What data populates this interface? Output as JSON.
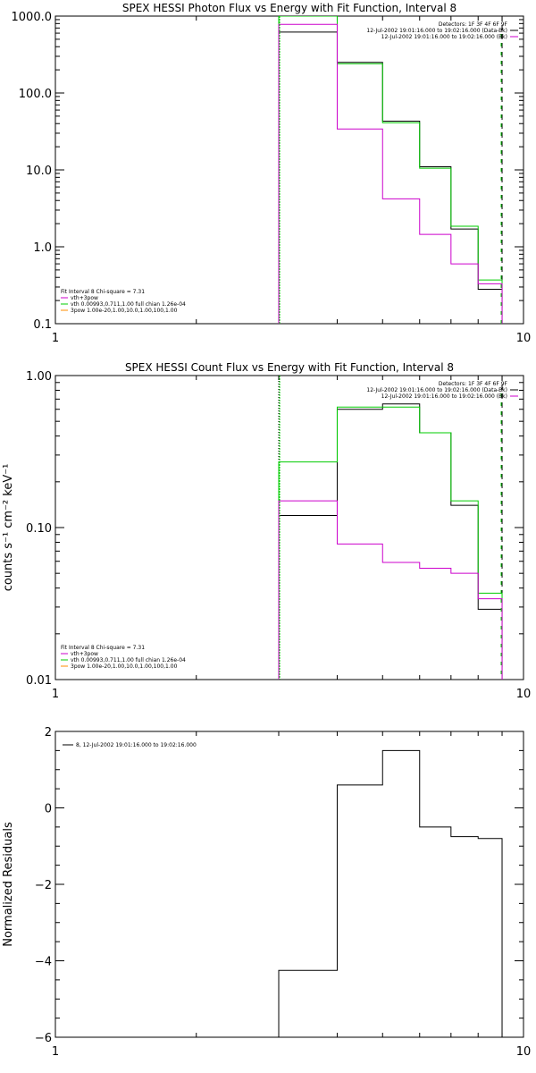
{
  "colors": {
    "data": "#000000",
    "total": "#00cc00",
    "background": "#cc00cc",
    "accent_orange": "#ff8c00",
    "purple": "#4b0082",
    "vline_low": "#00aa00"
  },
  "chart_data": [
    {
      "type": "line",
      "title": "SPEX HESSI Photon Flux vs Energy with Fit Function, Interval 8",
      "xscale": "log",
      "yscale": "log",
      "xlim": [
        1,
        10
      ],
      "ylim": [
        0.1,
        1000
      ],
      "xticks": [
        1,
        10
      ],
      "xtick_labels": [
        "1",
        "10"
      ],
      "yticks": [
        0.1,
        1,
        10,
        100,
        1000
      ],
      "ytick_labels": [
        "0.1",
        "1.0",
        "10.0",
        "100.0",
        "1000.0"
      ],
      "ylabel": "",
      "vlines": [
        {
          "x": 3.0,
          "style": "dotted"
        },
        {
          "x": 9.0,
          "style": "dashed"
        }
      ],
      "legend_top_right": [
        "Detectors: 1F 3F 4F 6F 9F",
        "12-Jul-2002 19:01:16.000 to 19:02:16.000 (Data-Bk)",
        "12-Jul-2002 19:01:16.000 to 19:02:16.000 (Bk)"
      ],
      "legend_bottom_left": [
        "Fit Interval 8    Chi-square = 7.31",
        "vth+3pow",
        "vth 0.00993,0.711,1.00  full chian 1.26e-04",
        "3pow 1.00e-20,1.00,10.0,1.00,100,1.00"
      ],
      "edges": [
        3.0,
        4.0,
        5.0,
        6.0,
        7.0,
        8.0,
        9.0
      ],
      "series": [
        {
          "name": "Data-Bk",
          "values": [
            620,
            250,
            43,
            11,
            1.7,
            0.28
          ]
        },
        {
          "name": "vth+3pow",
          "values": [
            1000,
            240,
            41,
            10.5,
            1.85,
            0.37
          ]
        },
        {
          "name": "Bk",
          "values": [
            780,
            34,
            4.2,
            1.45,
            0.6,
            0.33
          ]
        }
      ]
    },
    {
      "type": "line",
      "title": "SPEX HESSI Count Flux vs Energy with Fit Function, Interval 8",
      "xscale": "log",
      "yscale": "log",
      "xlim": [
        1,
        10
      ],
      "ylim": [
        0.01,
        1.0
      ],
      "xticks": [
        1,
        10
      ],
      "xtick_labels": [
        "1",
        "10"
      ],
      "yticks": [
        0.01,
        0.1,
        1.0
      ],
      "ytick_labels": [
        "0.01",
        "0.10",
        "1.00"
      ],
      "ylabel": "counts s⁻¹ cm⁻² keV⁻¹",
      "vlines": [
        {
          "x": 3.0,
          "style": "dotted"
        },
        {
          "x": 9.0,
          "style": "dashed"
        }
      ],
      "legend_top_right": [
        "Detectors: 1F 3F 4F 6F 9F",
        "12-Jul-2002 19:01:16.000 to 19:02:16.000 (Data-Bk)",
        "12-Jul-2002 19:01:16.000 to 19:02:16.000 (Bk)"
      ],
      "legend_bottom_left": [
        "Fit Interval 8    Chi-square = 7.31",
        "vth+3pow",
        "vth 0.00993,0.711,1.00  full chian 1.26e-04",
        "3pow 1.00e-20,1.00,10.0,1.00,100,1.00"
      ],
      "edges": [
        3.0,
        4.0,
        5.0,
        6.0,
        7.0,
        8.0,
        9.0
      ],
      "series": [
        {
          "name": "Data-Bk",
          "values": [
            0.12,
            0.6,
            0.65,
            0.42,
            0.14,
            0.029
          ]
        },
        {
          "name": "vth+3pow",
          "values": [
            0.27,
            0.62,
            0.62,
            0.42,
            0.15,
            0.037
          ]
        },
        {
          "name": "Bk",
          "values": [
            0.15,
            0.078,
            0.059,
            0.054,
            0.05,
            0.034
          ]
        }
      ]
    },
    {
      "type": "line",
      "title": "",
      "xscale": "log",
      "yscale": "linear",
      "xlim": [
        1,
        10
      ],
      "ylim": [
        -6,
        2
      ],
      "xticks": [
        1,
        10
      ],
      "xtick_labels": [
        "1",
        "10"
      ],
      "yticks": [
        -6,
        -4,
        -2,
        0,
        2
      ],
      "ytick_labels": [
        "−6",
        "−4",
        "−2",
        "0",
        "2"
      ],
      "ylabel": "Normalized Residuals",
      "legend_top_left": [
        "8, 12-Jul-2002 19:01:16.000 to 19:02:16.000"
      ],
      "edges": [
        3.0,
        4.0,
        5.0,
        6.0,
        7.0,
        8.0,
        9.0
      ],
      "series": [
        {
          "name": "8, 12-Jul-2002 19:01:16.000 to 19:02:16.000",
          "values": [
            -4.25,
            0.6,
            1.5,
            -0.5,
            -0.75,
            -0.8
          ]
        }
      ]
    }
  ]
}
